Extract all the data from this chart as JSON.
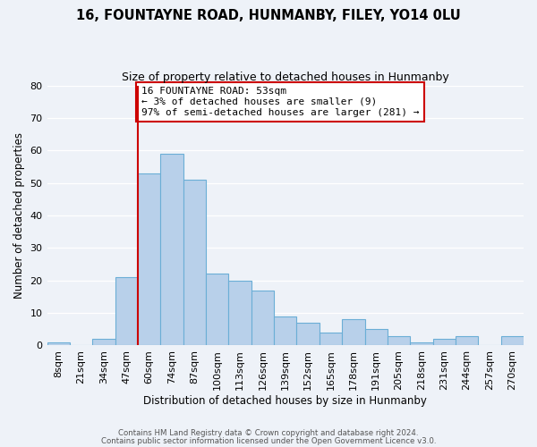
{
  "title": "16, FOUNTAYNE ROAD, HUNMANBY, FILEY, YO14 0LU",
  "subtitle": "Size of property relative to detached houses in Hunmanby",
  "xlabel": "Distribution of detached houses by size in Hunmanby",
  "ylabel": "Number of detached properties",
  "bin_labels": [
    "8sqm",
    "21sqm",
    "34sqm",
    "47sqm",
    "60sqm",
    "74sqm",
    "87sqm",
    "100sqm",
    "113sqm",
    "126sqm",
    "139sqm",
    "152sqm",
    "165sqm",
    "178sqm",
    "191sqm",
    "205sqm",
    "218sqm",
    "231sqm",
    "244sqm",
    "257sqm",
    "270sqm"
  ],
  "bin_values": [
    1,
    0,
    2,
    21,
    53,
    59,
    51,
    22,
    20,
    17,
    9,
    7,
    4,
    8,
    5,
    3,
    1,
    2,
    3,
    0,
    3
  ],
  "bar_color": "#b8d0ea",
  "bar_edge_color": "#6baed6",
  "vline_x_index": 3.5,
  "vline_color": "#cc0000",
  "annotation_text": "16 FOUNTAYNE ROAD: 53sqm\n← 3% of detached houses are smaller (9)\n97% of semi-detached houses are larger (281) →",
  "annotation_box_color": "#ffffff",
  "annotation_box_edge_color": "#cc0000",
  "ylim": [
    0,
    80
  ],
  "yticks": [
    0,
    10,
    20,
    30,
    40,
    50,
    60,
    70,
    80
  ],
  "footer1": "Contains HM Land Registry data © Crown copyright and database right 2024.",
  "footer2": "Contains public sector information licensed under the Open Government Licence v3.0.",
  "background_color": "#eef2f8",
  "grid_color": "#ffffff"
}
